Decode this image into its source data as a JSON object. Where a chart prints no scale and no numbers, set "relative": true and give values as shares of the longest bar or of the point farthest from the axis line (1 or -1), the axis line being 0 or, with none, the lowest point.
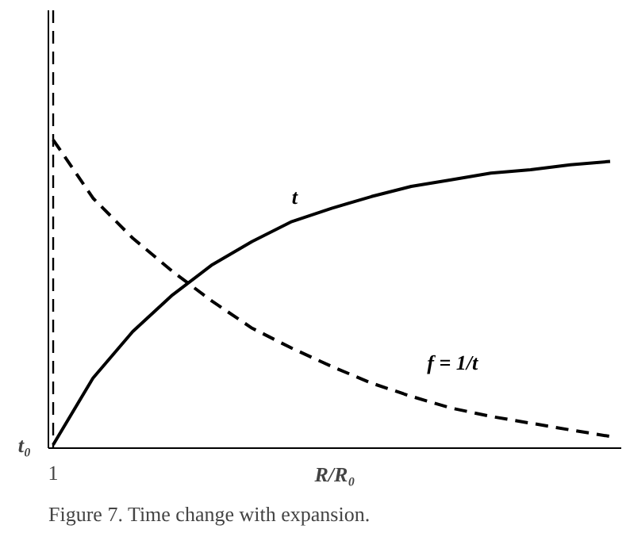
{
  "chart_data": {
    "type": "line",
    "relative": true,
    "xlabel": "R/R₀",
    "categories": [
      null,
      null,
      null,
      null,
      null,
      null,
      null,
      null,
      null,
      null,
      null,
      null,
      null,
      null,
      null
    ],
    "series": [
      {
        "name": "t",
        "color": "#000000",
        "line_style": "solid",
        "values": [
          0.011,
          0.227,
          0.378,
          0.497,
          0.595,
          0.67,
          0.735,
          0.778,
          0.816,
          0.849,
          0.87,
          0.892,
          0.903,
          0.919,
          0.93
        ]
      },
      {
        "name": "f = 1/t",
        "color": "#000000",
        "line_style": "dashed",
        "values": [
          1.0,
          0.811,
          0.681,
          0.573,
          0.476,
          0.389,
          0.324,
          0.265,
          0.211,
          0.168,
          0.13,
          0.103,
          0.081,
          0.059,
          0.038
        ]
      }
    ],
    "ref_lines": [
      {
        "axis": "x",
        "label": "1",
        "color": "#000000",
        "line_style": "dashed"
      }
    ],
    "annotations": [
      "t₀",
      "Figure 7. Time change with expansion."
    ],
    "grid": false,
    "legend": false,
    "marker": "none"
  }
}
